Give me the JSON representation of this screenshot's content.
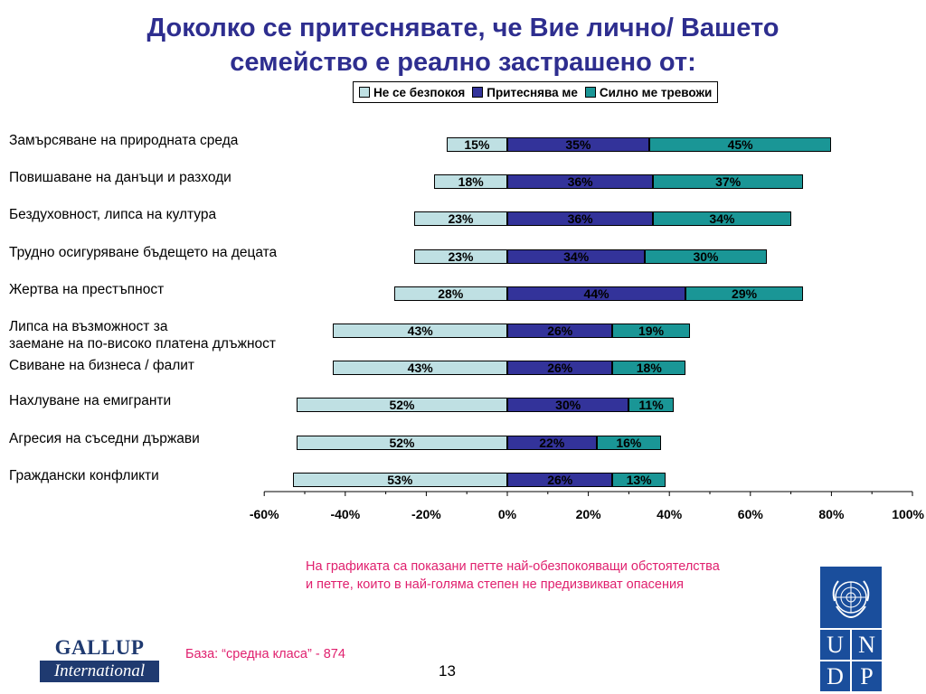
{
  "title_line1": "Доколко се притеснявате, че Вие лично/ Вашето",
  "title_line2": "семейство е реално застрашено от:",
  "chart_data": {
    "type": "bar",
    "orientation": "horizontal",
    "stacked": true,
    "diverging": true,
    "categories": [
      "Замърсяване на природната среда",
      "Повишаване на данъци и разходи",
      "Бездуховност, липса на култура",
      "Трудно осигуряване бъдещето на децата",
      "Жертва на престъпност",
      "Липса на възможност за заемане на по-високо платена длъжност",
      "Свиване на бизнеса / фалит",
      "Нахлуване на емигранти",
      "Агресия на съседни държави",
      "Граждански конфликти"
    ],
    "category_lines": [
      [
        "Замърсяване на природната среда"
      ],
      [
        "Повишаване на данъци и разходи"
      ],
      [
        "Бездуховност, липса на култура"
      ],
      [
        "Трудно осигуряване бъдещето на децата"
      ],
      [
        "Жертва на престъпност"
      ],
      [
        "Липса на възможност за",
        "заемане на по-високо платена длъжност"
      ],
      [
        "Свиване на бизнеса / фалит"
      ],
      [
        "Нахлуване на емигранти"
      ],
      [
        "Агресия на съседни държави"
      ],
      [
        "Граждански конфликти"
      ]
    ],
    "series": [
      {
        "name": "Не се безпокоя",
        "color": "#bfe0e3",
        "side": "negative",
        "values": [
          15,
          18,
          23,
          23,
          28,
          43,
          43,
          52,
          52,
          53
        ]
      },
      {
        "name": "Притеснява ме",
        "color": "#33339a",
        "side": "positive",
        "values": [
          35,
          36,
          36,
          34,
          44,
          26,
          26,
          30,
          22,
          26
        ]
      },
      {
        "name": "Силно ме тревожи",
        "color": "#1a9696",
        "side": "positive",
        "values": [
          45,
          37,
          34,
          30,
          29,
          19,
          18,
          11,
          16,
          13
        ]
      }
    ],
    "xlim": [
      -60,
      100
    ],
    "xticks": [
      "-60%",
      "-40%",
      "-20%",
      "0%",
      "20%",
      "40%",
      "60%",
      "80%",
      "100%"
    ],
    "legend_position": "top-right",
    "grid": false
  },
  "note_line1": "На графиката са показани петте най-обезпокояващи обстоятелства",
  "note_line2": "и петте, които в най-голяма степен не предизвикват опасения",
  "base": "База: “средна класа” - 874",
  "page_number": "13",
  "gallup_line1": "GALLUP",
  "gallup_line2": "International",
  "undp_letters": [
    "U",
    "N",
    "D",
    "P"
  ]
}
